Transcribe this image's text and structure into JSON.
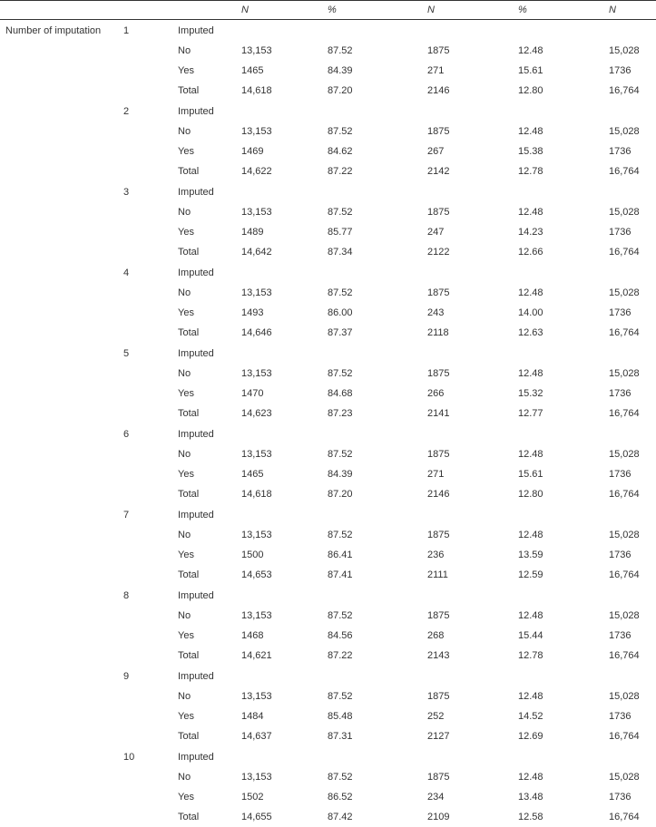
{
  "header": {
    "n_label": "N",
    "pct_label": "%"
  },
  "row_group_label": "Number of imputation",
  "imputation_numbers": [
    "1",
    "2",
    "3",
    "4",
    "5",
    "6",
    "7",
    "8",
    "9",
    "10"
  ],
  "row_labels": {
    "imputed": "Imputed",
    "no": "No",
    "yes": "Yes",
    "total": "Total"
  },
  "groups": [
    {
      "no": {
        "n1": "13,153",
        "p1": "87.52",
        "n2": "1875",
        "p2": "12.48",
        "n3": "15,028"
      },
      "yes": {
        "n1": "1465",
        "p1": "84.39",
        "n2": "271",
        "p2": "15.61",
        "n3": "1736"
      },
      "total": {
        "n1": "14,618",
        "p1": "87.20",
        "n2": "2146",
        "p2": "12.80",
        "n3": "16,764"
      }
    },
    {
      "no": {
        "n1": "13,153",
        "p1": "87.52",
        "n2": "1875",
        "p2": "12.48",
        "n3": "15,028"
      },
      "yes": {
        "n1": "1469",
        "p1": "84.62",
        "n2": "267",
        "p2": "15.38",
        "n3": "1736"
      },
      "total": {
        "n1": "14,622",
        "p1": "87.22",
        "n2": "2142",
        "p2": "12.78",
        "n3": "16,764"
      }
    },
    {
      "no": {
        "n1": "13,153",
        "p1": "87.52",
        "n2": "1875",
        "p2": "12.48",
        "n3": "15,028"
      },
      "yes": {
        "n1": "1489",
        "p1": "85.77",
        "n2": "247",
        "p2": "14.23",
        "n3": "1736"
      },
      "total": {
        "n1": "14,642",
        "p1": "87.34",
        "n2": "2122",
        "p2": "12.66",
        "n3": "16,764"
      }
    },
    {
      "no": {
        "n1": "13,153",
        "p1": "87.52",
        "n2": "1875",
        "p2": "12.48",
        "n3": "15,028"
      },
      "yes": {
        "n1": "1493",
        "p1": "86.00",
        "n2": "243",
        "p2": "14.00",
        "n3": "1736"
      },
      "total": {
        "n1": "14,646",
        "p1": "87.37",
        "n2": "2118",
        "p2": "12.63",
        "n3": "16,764"
      }
    },
    {
      "no": {
        "n1": "13,153",
        "p1": "87.52",
        "n2": "1875",
        "p2": "12.48",
        "n3": "15,028"
      },
      "yes": {
        "n1": "1470",
        "p1": "84.68",
        "n2": "266",
        "p2": "15.32",
        "n3": "1736"
      },
      "total": {
        "n1": "14,623",
        "p1": "87.23",
        "n2": "2141",
        "p2": "12.77",
        "n3": "16,764"
      }
    },
    {
      "no": {
        "n1": "13,153",
        "p1": "87.52",
        "n2": "1875",
        "p2": "12.48",
        "n3": "15,028"
      },
      "yes": {
        "n1": "1465",
        "p1": "84.39",
        "n2": "271",
        "p2": "15.61",
        "n3": "1736"
      },
      "total": {
        "n1": "14,618",
        "p1": "87.20",
        "n2": "2146",
        "p2": "12.80",
        "n3": "16,764"
      }
    },
    {
      "no": {
        "n1": "13,153",
        "p1": "87.52",
        "n2": "1875",
        "p2": "12.48",
        "n3": "15,028"
      },
      "yes": {
        "n1": "1500",
        "p1": "86.41",
        "n2": "236",
        "p2": "13.59",
        "n3": "1736"
      },
      "total": {
        "n1": "14,653",
        "p1": "87.41",
        "n2": "2111",
        "p2": "12.59",
        "n3": "16,764"
      }
    },
    {
      "no": {
        "n1": "13,153",
        "p1": "87.52",
        "n2": "1875",
        "p2": "12.48",
        "n3": "15,028"
      },
      "yes": {
        "n1": "1468",
        "p1": "84.56",
        "n2": "268",
        "p2": "15.44",
        "n3": "1736"
      },
      "total": {
        "n1": "14,621",
        "p1": "87.22",
        "n2": "2143",
        "p2": "12.78",
        "n3": "16,764"
      }
    },
    {
      "no": {
        "n1": "13,153",
        "p1": "87.52",
        "n2": "1875",
        "p2": "12.48",
        "n3": "15,028"
      },
      "yes": {
        "n1": "1484",
        "p1": "85.48",
        "n2": "252",
        "p2": "14.52",
        "n3": "1736"
      },
      "total": {
        "n1": "14,637",
        "p1": "87.31",
        "n2": "2127",
        "p2": "12.69",
        "n3": "16,764"
      }
    },
    {
      "no": {
        "n1": "13,153",
        "p1": "87.52",
        "n2": "1875",
        "p2": "12.48",
        "n3": "15,028"
      },
      "yes": {
        "n1": "1502",
        "p1": "86.52",
        "n2": "234",
        "p2": "13.48",
        "n3": "1736"
      },
      "total": {
        "n1": "14,655",
        "p1": "87.42",
        "n2": "2109",
        "p2": "12.58",
        "n3": "16,764"
      }
    }
  ]
}
